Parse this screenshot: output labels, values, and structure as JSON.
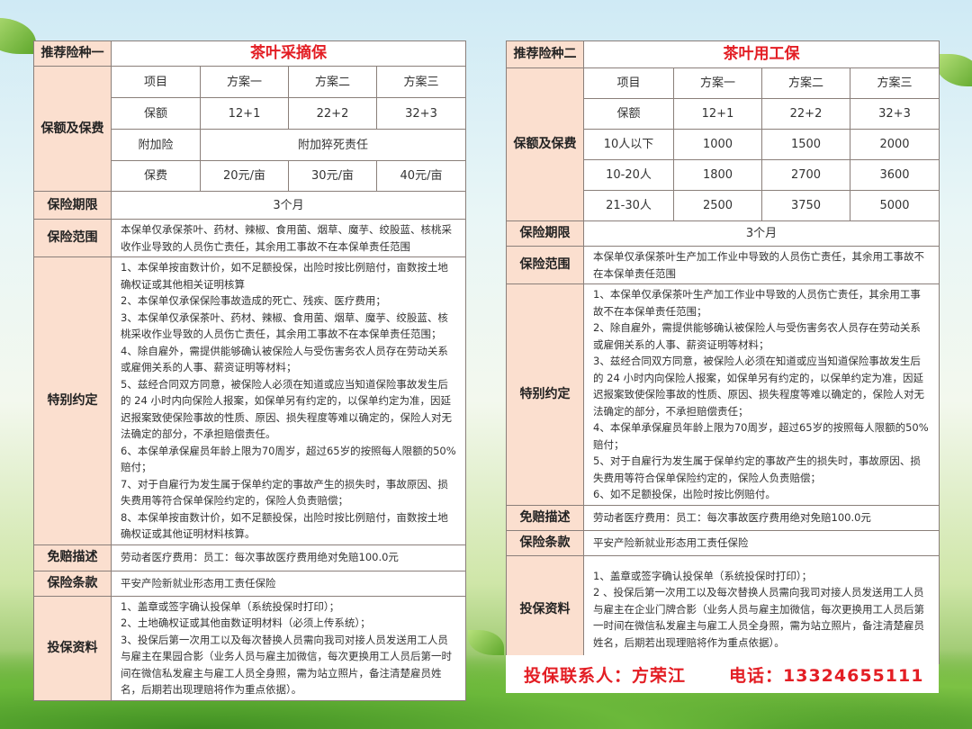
{
  "left": {
    "label": "推荐险种一",
    "title": "茶叶采摘保",
    "premium_label": "保额及保费",
    "header": [
      "项目",
      "方案一",
      "方案二",
      "方案三"
    ],
    "coverage": [
      "保额",
      "12+1",
      "22+2",
      "32+3"
    ],
    "addon": [
      "附加险",
      "附加猝死责任"
    ],
    "fee": [
      "保费",
      "20元/亩",
      "30元/亩",
      "40元/亩"
    ],
    "period_label": "保险期限",
    "period": "3个月",
    "scope_label": "保险范围",
    "scope": "本保单仅承保茶叶、药材、辣椒、食用菌、烟草、魔芋、绞股蓝、核桃采收作业导致的人员伤亡责任，其余用工事故不在本保单责任范围",
    "special_label": "特别约定",
    "special": [
      "1、本保单按亩数计价，如不足额投保，出险时按比例赔付，亩数按土地确权证或其他相关证明核算",
      "2、本保单仅承保保险事故造成的死亡、残疾、医疗费用；",
      "3、本保单仅承保茶叶、药材、辣椒、食用菌、烟草、魔芋、绞股蓝、核桃采收作业导致的人员伤亡责任，其余用工事故不在本保单责任范围；",
      "4、除自雇外，需提供能够确认被保险人与受伤害务农人员存在劳动关系或雇佣关系的人事、薪资证明等材料；",
      "5、兹经合同双方同意，被保险人必须在知道或应当知道保险事故发生后的 24 小时内向保险人报案，如保单另有约定的，以保单约定为准，因延迟报案致使保险事故的性质、原因、损失程度等难以确定的，保险人对无法确定的部分，不承担赔偿责任。",
      "6、本保单承保雇员年龄上限为70周岁，超过65岁的按照每人限额的50%赔付；",
      "7、对于自雇行为发生属于保单约定的事故产生的损失时，事故原因、损失费用等符合保单保险约定的，保险人负责赔偿；",
      "8、本保单按亩数计价，如不足额投保，出险时按比例赔付，亩数按土地确权证或其他证明材料核算。"
    ],
    "deductible_label": "免赔描述",
    "deductible": "劳动者医疗费用：员工：每次事故医疗费用绝对免赔100.0元",
    "clause_label": "保险条款",
    "clause": "平安产险新就业形态用工责任保险",
    "materials_label": "投保资料",
    "materials": [
      "1、盖章或签字确认投保单（系统投保时打印）；",
      "2、土地确权证或其他亩数证明材料（必须上传系统）；",
      "3、投保后第一次用工以及每次替换人员需向我司对接人员发送用工人员与雇主在果园合影（业务人员与雇主加微信，每次更换用工人员后第一时间在微信私发雇主与雇工人员全身照，需为站立照片，备注清楚雇员姓名，后期若出现理赔将作为重点依据）。"
    ]
  },
  "right": {
    "label": "推荐险种二",
    "title": "茶叶用工保",
    "premium_label": "保额及保费",
    "header": [
      "项目",
      "方案一",
      "方案二",
      "方案三"
    ],
    "rows": [
      [
        "保额",
        "12+1",
        "22+2",
        "32+3"
      ],
      [
        "10人以下",
        "1000",
        "1500",
        "2000"
      ],
      [
        "10-20人",
        "1800",
        "2700",
        "3600"
      ],
      [
        "21-30人",
        "2500",
        "3750",
        "5000"
      ]
    ],
    "period_label": "保险期限",
    "period": "3个月",
    "scope_label": "保险范围",
    "scope": "本保单仅承保茶叶生产加工作业中导致的人员伤亡责任，其余用工事故不在本保单责任范围",
    "special_label": "特别约定",
    "special": [
      "1、本保单仅承保茶叶生产加工作业中导致的人员伤亡责任，其余用工事故不在本保单责任范围；",
      "2、除自雇外，需提供能够确认被保险人与受伤害务农人员存在劳动关系或雇佣关系的人事、薪资证明等材料；",
      "3、兹经合同双方同意，被保险人必须在知道或应当知道保险事故发生后的 24 小时内向保险人报案，如保单另有约定的，以保单约定为准，因延迟报案致使保险事故的性质、原因、损失程度等难以确定的，保险人对无法确定的部分，不承担赔偿责任；",
      "4、本保单承保雇员年龄上限为70周岁，超过65岁的按照每人限额的50%赔付；",
      "5、对于自雇行为发生属于保单约定的事故产生的损失时，事故原因、损失费用等符合保单保险约定的，保险人负责赔偿；",
      "6、如不足额投保，出险时按比例赔付。"
    ],
    "deductible_label": "免赔描述",
    "deductible": "劳动者医疗费用：员工：每次事故医疗费用绝对免赔100.0元",
    "clause_label": "保险条款",
    "clause": "平安产险新就业形态用工责任保险",
    "materials_label": "投保资料",
    "materials": [
      "1、盖章或签字确认投保单（系统投保时打印）；",
      "2 、投保后第一次用工以及每次替换人员需向我司对接人员发送用工人员与雇主在企业门牌合影（业务人员与雇主加微信，每次更换用工人员后第一时间在微信私发雇主与雇工人员全身照，需为站立照片，备注清楚雇员姓名，后期若出现理赔将作为重点依据）。"
    ]
  },
  "contact": {
    "person": "投保联系人：方荣江",
    "phone": "电话：13324655111"
  },
  "colors": {
    "title_red": "#e31e24",
    "label_bg": "#fbdfcf"
  }
}
